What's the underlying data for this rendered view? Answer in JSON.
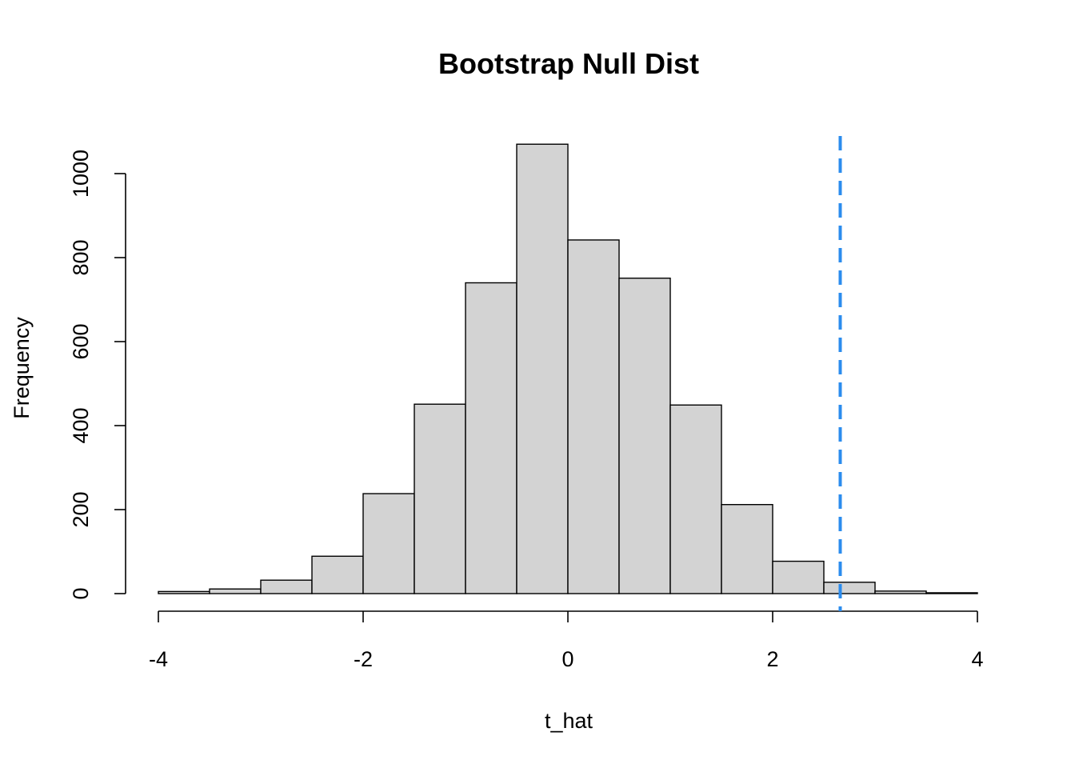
{
  "chart_data": {
    "type": "bar",
    "title": "Bootstrap Null Dist",
    "xlabel": "t_hat",
    "ylabel": "Frequency",
    "bin_edges": [
      -4,
      -3.5,
      -3,
      -2.5,
      -2,
      -1.5,
      -1,
      -0.5,
      0,
      0.5,
      1,
      1.5,
      2,
      2.5,
      3,
      3.5,
      4
    ],
    "values": [
      5,
      11,
      32,
      89,
      238,
      451,
      740,
      1070,
      842,
      751,
      449,
      212,
      77,
      27,
      6,
      2
    ],
    "xlim": [
      -4,
      4
    ],
    "ylim": [
      0,
      1000
    ],
    "x_ticks": [
      -4,
      -2,
      0,
      2,
      4
    ],
    "y_ticks": [
      0,
      200,
      400,
      600,
      800,
      1000
    ],
    "reference_line": {
      "x": 2.66,
      "style": "dashed",
      "color": "#2b8cee"
    },
    "bar_color": "#d3d3d3",
    "grid": false
  }
}
